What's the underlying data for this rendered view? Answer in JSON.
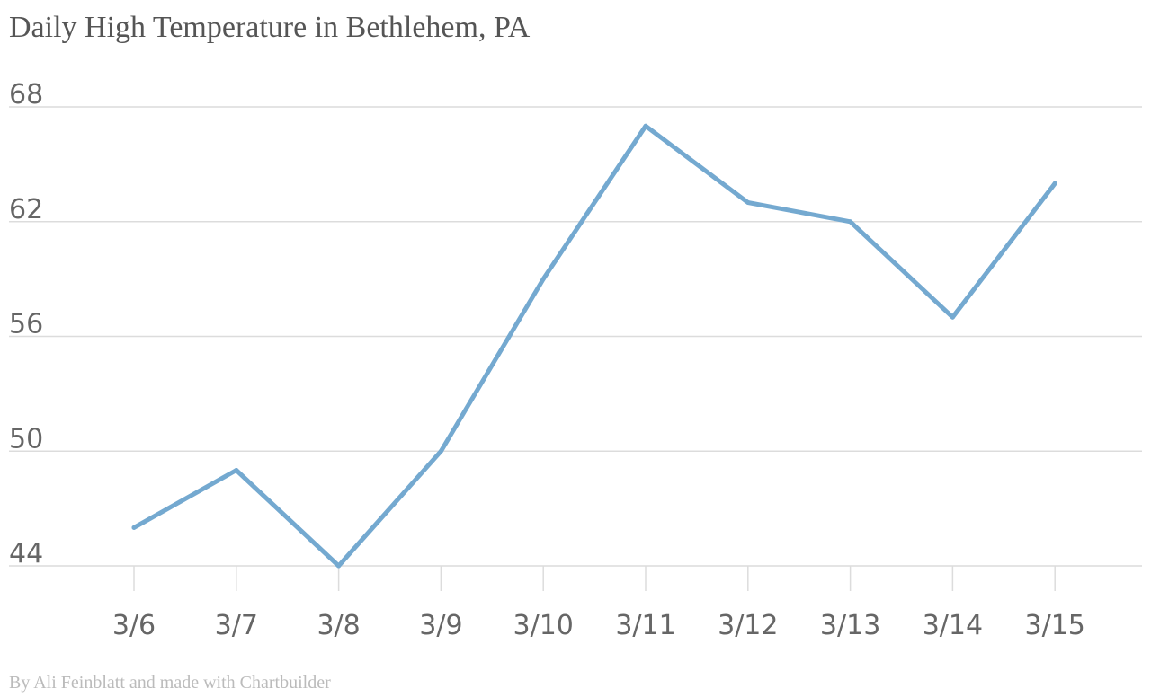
{
  "chart_data": {
    "type": "line",
    "title": "Daily High Temperature in Bethlehem, PA",
    "credit": "By Ali Feinblatt and made with Chartbuilder",
    "xlabel": "",
    "ylabel": "",
    "categories": [
      "3/6",
      "3/7",
      "3/8",
      "3/9",
      "3/10",
      "3/11",
      "3/12",
      "3/13",
      "3/14",
      "3/15"
    ],
    "series": [
      {
        "values": [
          46,
          49,
          44,
          50,
          59,
          67,
          63,
          62,
          57,
          64
        ]
      }
    ],
    "y_ticks": [
      44,
      50,
      56,
      62,
      68
    ],
    "ylim": [
      44,
      68
    ],
    "grid": true,
    "legend": "none",
    "colors": {
      "line": "#74a9d0",
      "grid": "#dcdcdc",
      "tick_text": "#666666",
      "title": "#555555",
      "credit": "#bbbbbb"
    }
  }
}
